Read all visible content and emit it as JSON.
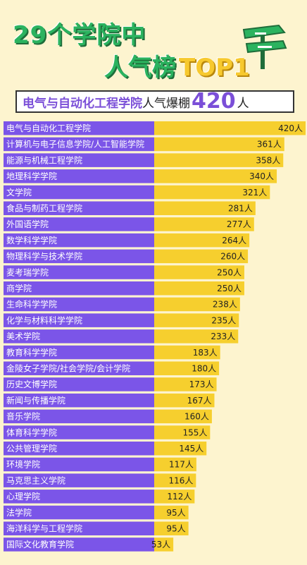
{
  "header": {
    "title_line1": "29个学院中",
    "title_line2": "人气榜",
    "title_badge": "TOP1",
    "headline_college": "电气与自动化工程学院",
    "headline_text": "人气爆棚",
    "headline_number": "420",
    "headline_unit": "人"
  },
  "colors": {
    "label_bar": "#7b55e8",
    "value_bar": "#f6cf2e",
    "accent_green": "#2bb35f",
    "background": "#fdf4cf"
  },
  "chart_data": {
    "type": "bar",
    "orientation": "horizontal",
    "unit": "人",
    "categories": [
      "电气与自动化工程学院",
      "计算机与电子信息学院/人工智能学院",
      "能源与机械工程学院",
      "地理科学学院",
      "文学院",
      "食品与制药工程学院",
      "外国语学院",
      "数学科学学院",
      "物理科学与技术学院",
      "麦考瑞学院",
      "商学院",
      "生命科学学院",
      "化学与材料科学学院",
      "美术学院",
      "教育科学学院",
      "金陵女子学院/社会学院/会计学院",
      "历史文博学院",
      "新闻与传播学院",
      "音乐学院",
      "体育科学学院",
      "公共管理学院",
      "环境学院",
      "马克思主义学院",
      "心理学院",
      "法学院",
      "海洋科学与工程学院",
      "国际文化教育学院"
    ],
    "values": [
      420,
      361,
      358,
      340,
      321,
      281,
      277,
      264,
      260,
      250,
      250,
      238,
      235,
      233,
      183,
      180,
      173,
      167,
      160,
      155,
      145,
      117,
      116,
      112,
      95,
      95,
      53
    ],
    "value_labels": [
      "420人",
      "361人",
      "358人",
      "340人",
      "321人",
      "281人",
      "277人",
      "264人",
      "260人",
      "250人",
      "250人",
      "238人",
      "235人",
      "233人",
      "183人",
      "180人",
      "173人",
      "167人",
      "160人",
      "155人",
      "145人",
      "117人",
      "116人",
      "112人",
      "95人",
      "95人",
      "53人"
    ]
  }
}
